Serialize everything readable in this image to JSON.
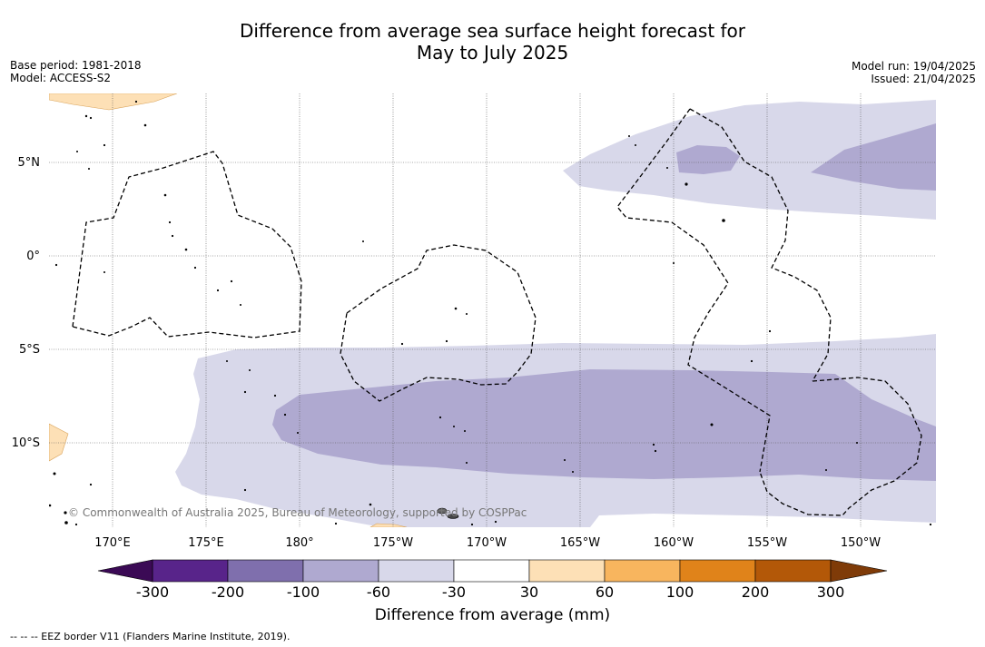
{
  "title_line1": "Difference from average sea surface height forecast for",
  "title_line2": "May to July 2025",
  "base_period": "Base period: 1981-2018",
  "model": "Model: ACCESS-S2",
  "model_run": "Model run: 19/04/2025",
  "issued": "Issued: 21/04/2025",
  "copyright": "© Commonwealth of Australia 2025, Bureau of Meteorology, supported by COSPPac",
  "lon_labels": [
    "170°E",
    "175°E",
    "180°",
    "175°W",
    "170°W",
    "165°W",
    "160°W",
    "155°W",
    "150°W"
  ],
  "lat_labels": [
    "5°N",
    "0°",
    "5°S",
    "10°S"
  ],
  "colorbar": {
    "title": "Difference from average (mm)",
    "labels": [
      "-300",
      "-200",
      "-100",
      "-60",
      "-30",
      "30",
      "60",
      "100",
      "200",
      "300"
    ],
    "colors": [
      "#58248a",
      "#7f6fad",
      "#afa9d0",
      "#d8d8ea",
      "#ffffff",
      "#fde0b6",
      "#f8b55e",
      "#e0831a",
      "#b35808"
    ],
    "low_extend": "#3b0a55",
    "high_extend": "#7f3b08"
  },
  "footer": "--  --  -- EEZ border V11 (Flanders Marine Institute, 2019).",
  "land_color": "#fde0b6",
  "light_anomaly_color": "#d8d8ea",
  "medium_anomaly_color": "#afa9d0"
}
